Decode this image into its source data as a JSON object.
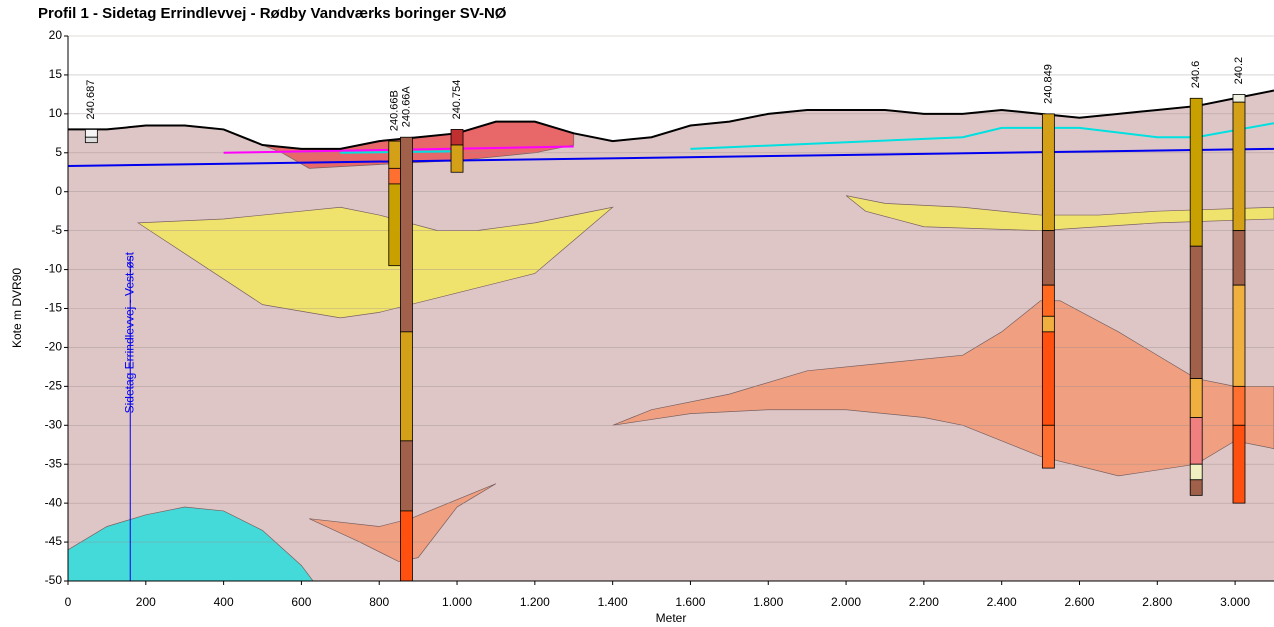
{
  "chart_data": {
    "type": "profile",
    "title": "Profil 1 - Sidetag Errindlevvej - Rødby Vandværks boringer SV-NØ",
    "x_label": "Meter",
    "y_label": "Kote m DVR90",
    "xlim": [
      0,
      3100
    ],
    "ylim": [
      -50,
      20
    ],
    "xticks": [
      0,
      200,
      400,
      600,
      800,
      {
        "value": 1000,
        "label": "1.000"
      },
      {
        "value": 1200,
        "label": "1.200"
      },
      {
        "value": 1400,
        "label": "1.400"
      },
      {
        "value": 1600,
        "label": "1.600"
      },
      {
        "value": 1800,
        "label": "1.800"
      },
      {
        "value": 2000,
        "label": "2.000"
      },
      {
        "value": 2200,
        "label": "2.200"
      },
      {
        "value": 2400,
        "label": "2.400"
      },
      {
        "value": 2600,
        "label": "2.600"
      },
      {
        "value": 2800,
        "label": "2.800"
      },
      {
        "value": 3000,
        "label": "3.000"
      }
    ],
    "yticks": [
      20,
      15,
      10,
      5,
      0,
      -5,
      -10,
      -15,
      -20,
      -25,
      -30,
      -35,
      -40,
      -45,
      -50
    ],
    "grid": true,
    "ground_color": "#dfc6c6",
    "terrain": {
      "color": "#000000",
      "x": [
        0,
        100,
        200,
        300,
        400,
        500,
        600,
        700,
        800,
        900,
        1000,
        1100,
        1200,
        1300,
        1400,
        1500,
        1600,
        1700,
        1800,
        1900,
        2000,
        2100,
        2200,
        2300,
        2400,
        2500,
        2600,
        2700,
        2800,
        2900,
        3000,
        3100
      ],
      "y": [
        8,
        8,
        8.5,
        8.5,
        8,
        6,
        5.5,
        5.5,
        6.5,
        7,
        7.5,
        9,
        9,
        7.5,
        6.5,
        7,
        8.5,
        9,
        10,
        10.5,
        10.5,
        10.5,
        10,
        10,
        10.5,
        10,
        9.5,
        10,
        10.5,
        11,
        12,
        13
      ]
    },
    "layers": [
      {
        "color": "#e8686a",
        "x": [
          500,
          600,
          700,
          800,
          900,
          1000,
          1100,
          1200,
          1300,
          1300,
          1200,
          1000,
          800,
          620,
          550
        ],
        "y": [
          6,
          5.5,
          5.5,
          6.5,
          7,
          7.5,
          9,
          9,
          7.5,
          6,
          5,
          4,
          3.5,
          3,
          5
        ]
      },
      {
        "color": "#efe36e",
        "x": [
          180,
          400,
          600,
          700,
          800,
          950,
          1050,
          1200,
          1400,
          1200,
          1000,
          800,
          700,
          500
        ],
        "y": [
          -4,
          -3.5,
          -2.5,
          -2,
          -3,
          -5,
          -5,
          -4,
          -2,
          -10.5,
          -13,
          -15.5,
          -16.2,
          -14.5
        ]
      },
      {
        "color": "#efe36e",
        "x": [
          2000,
          2100,
          2300,
          2500,
          2650,
          2800,
          3100,
          3100,
          2800,
          2500,
          2200,
          2050
        ],
        "y": [
          -0.5,
          -1.5,
          -2,
          -3,
          -3,
          -2.5,
          -2,
          -3.5,
          -4,
          -5,
          -4.5,
          -2.5
        ]
      },
      {
        "color": "#f0a080",
        "x": [
          1400,
          1500,
          1700,
          1900,
          2100,
          2300,
          2400,
          2500,
          2550,
          2700,
          2900,
          3000,
          3100,
          3100,
          3000,
          2900,
          2700,
          2500,
          2300,
          2200,
          2000,
          1800,
          1600
        ],
        "y": [
          -30,
          -28,
          -26,
          -23,
          -22,
          -21,
          -18,
          -14,
          -14,
          -18,
          -24,
          -25,
          -25,
          -33,
          -32,
          -35,
          -36.5,
          -34,
          -30,
          -29,
          -28,
          -28,
          -28.5
        ]
      },
      {
        "color": "#f0a080",
        "x": [
          620,
          800,
          880,
          1100,
          1000,
          900,
          850,
          750
        ],
        "y": [
          -42,
          -43,
          -42,
          -37.5,
          -40.5,
          -47,
          -47.5,
          -45
        ]
      },
      {
        "color": "#44dada",
        "x": [
          0,
          100,
          200,
          300,
          400,
          500,
          600,
          630,
          0
        ],
        "y": [
          -46,
          -43,
          -41.5,
          -40.5,
          -41,
          -43.5,
          -48,
          -50,
          -50
        ]
      }
    ],
    "lines": [
      {
        "color": "#0000ee",
        "x": [
          0,
          3100
        ],
        "y": [
          3.3,
          5.5
        ]
      },
      {
        "color": "#ff00ff",
        "x": [
          400,
          1300
        ],
        "y": [
          5,
          5.8
        ]
      },
      {
        "color": "#00e0e0",
        "x": [
          700,
          1000
        ],
        "y": [
          5,
          5.2
        ]
      },
      {
        "color": "#00e0e0",
        "x": [
          1600,
          2300,
          2400,
          2600,
          2800,
          2900,
          3100
        ],
        "y": [
          5.5,
          7,
          8.2,
          8.2,
          7,
          7,
          8.8
        ]
      }
    ],
    "marker": {
      "label": "Sidetag Errindlevvej - Vest-øst",
      "x": 160,
      "color": "#0000ee"
    },
    "boreholes": [
      {
        "label": "240.687",
        "x": 60,
        "intervals": [
          {
            "from": 8,
            "to": 7,
            "color": "#f4f4f4"
          },
          {
            "from": 7,
            "to": 6.3,
            "color": "#dddddd"
          }
        ]
      },
      {
        "label": "240.66B",
        "x": 840,
        "intervals": [
          {
            "from": 6.5,
            "to": 3,
            "color": "#d4a017"
          },
          {
            "from": 3,
            "to": 1,
            "color": "#ff7030"
          },
          {
            "from": 1,
            "to": -9.5,
            "color": "#c8a000"
          }
        ]
      },
      {
        "label": "240.66A",
        "x": 870,
        "intervals": [
          {
            "from": 7,
            "to": -18,
            "color": "#a0604a"
          },
          {
            "from": -18,
            "to": -32,
            "color": "#d4a017"
          },
          {
            "from": -32,
            "to": -41,
            "color": "#a0604a"
          },
          {
            "from": -41,
            "to": -50,
            "color": "#ff5010"
          }
        ]
      },
      {
        "label": "240.754",
        "x": 1000,
        "intervals": [
          {
            "from": 8,
            "to": 6,
            "color": "#c03030"
          },
          {
            "from": 6,
            "to": 2.5,
            "color": "#d4a017"
          }
        ]
      },
      {
        "label": "240.849",
        "x": 2520,
        "intervals": [
          {
            "from": 10,
            "to": -5,
            "color": "#d4a017"
          },
          {
            "from": -5,
            "to": -12,
            "color": "#a0604a"
          },
          {
            "from": -12,
            "to": -16,
            "color": "#ff6a20"
          },
          {
            "from": -16,
            "to": -18,
            "color": "#f0b040"
          },
          {
            "from": -18,
            "to": -30,
            "color": "#ff5010"
          },
          {
            "from": -30,
            "to": -35.5,
            "color": "#ff7030"
          }
        ]
      },
      {
        "label": "240.6",
        "x": 2900,
        "intervals": [
          {
            "from": 12,
            "to": -7,
            "color": "#c8a000"
          },
          {
            "from": -7,
            "to": -24,
            "color": "#a0604a"
          },
          {
            "from": -24,
            "to": -29,
            "color": "#f0b040"
          },
          {
            "from": -29,
            "to": -35,
            "color": "#f08080"
          },
          {
            "from": -35,
            "to": -37,
            "color": "#f0f0c0"
          },
          {
            "from": -37,
            "to": -39,
            "color": "#a0604a"
          }
        ]
      },
      {
        "label": "240.2",
        "x": 3010,
        "intervals": [
          {
            "from": 12.5,
            "to": 11.5,
            "color": "#f0f0e0"
          },
          {
            "from": 11.5,
            "to": -5,
            "color": "#d4a017"
          },
          {
            "from": -5,
            "to": -12,
            "color": "#a0604a"
          },
          {
            "from": -12,
            "to": -25,
            "color": "#f0b040"
          },
          {
            "from": -25,
            "to": -30,
            "color": "#ff7030"
          },
          {
            "from": -30,
            "to": -40,
            "color": "#ff5010"
          }
        ]
      }
    ]
  }
}
